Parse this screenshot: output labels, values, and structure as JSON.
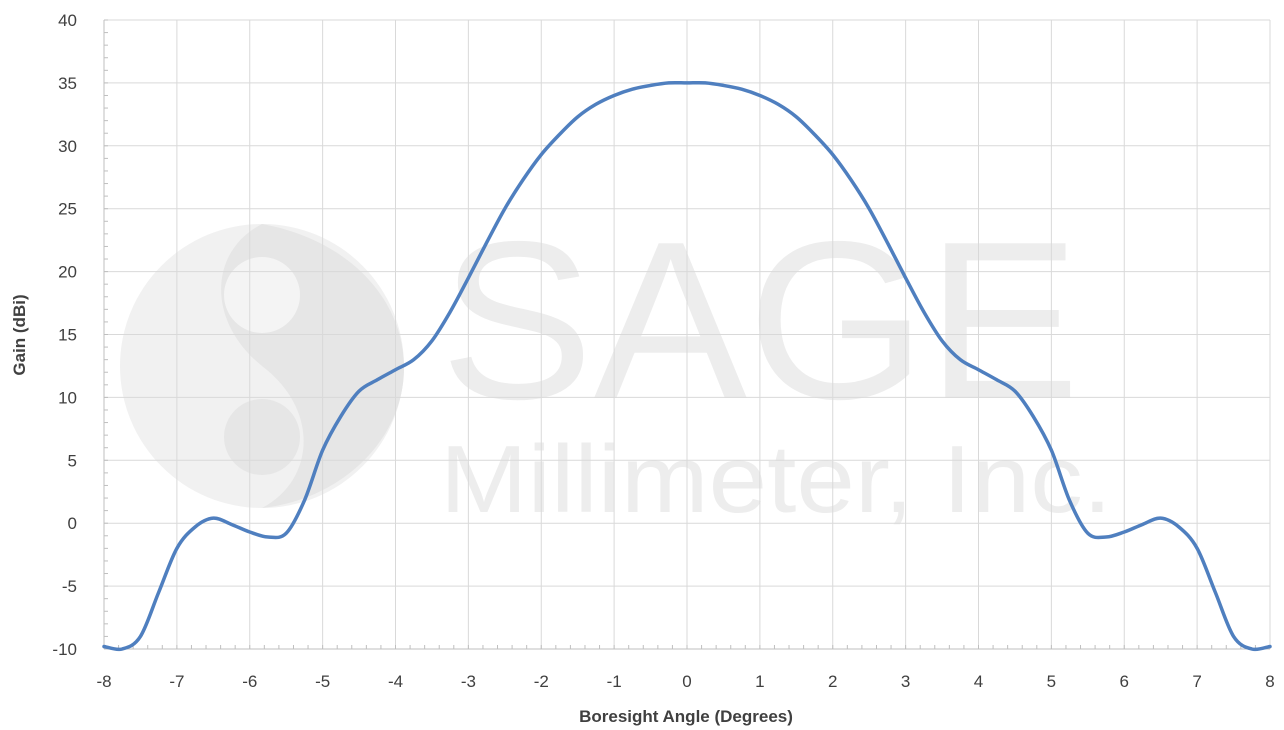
{
  "watermark": {
    "line1": "SAGE",
    "line2": "Millimeter, Inc."
  },
  "chart_data": {
    "type": "line",
    "title": "",
    "xlabel": "Boresight Angle (Degrees)",
    "ylabel": "Gain (dBi)",
    "xlim": [
      -8,
      8
    ],
    "ylim": [
      -10,
      40
    ],
    "xticks": [
      -8,
      -7,
      -6,
      -5,
      -4,
      -3,
      -2,
      -1,
      0,
      1,
      2,
      3,
      4,
      5,
      6,
      7,
      8
    ],
    "yticks": [
      -10,
      -5,
      0,
      5,
      10,
      15,
      20,
      25,
      30,
      35,
      40
    ],
    "grid": true,
    "legend": "none",
    "line_color": "#4f7fbf",
    "series": [
      {
        "x": [
          -8.0,
          -7.75,
          -7.5,
          -7.25,
          -7.0,
          -6.75,
          -6.5,
          -6.25,
          -6.0,
          -5.75,
          -5.5,
          -5.25,
          -5.0,
          -4.75,
          -4.5,
          -4.25,
          -4.0,
          -3.75,
          -3.5,
          -3.25,
          -3.0,
          -2.75,
          -2.5,
          -2.25,
          -2.0,
          -1.75,
          -1.5,
          -1.25,
          -1.0,
          -0.75,
          -0.5,
          -0.25,
          0.0,
          0.25,
          0.5,
          0.75,
          1.0,
          1.25,
          1.5,
          1.75,
          2.0,
          2.25,
          2.5,
          2.75,
          3.0,
          3.25,
          3.5,
          3.75,
          4.0,
          4.25,
          4.5,
          4.75,
          5.0,
          5.25,
          5.5,
          5.75,
          6.0,
          6.25,
          6.5,
          6.75,
          7.0,
          7.25,
          7.5,
          7.75,
          8.0
        ],
        "y": [
          -9.8,
          -10.0,
          -9.0,
          -5.5,
          -2.0,
          -0.3,
          0.4,
          -0.1,
          -0.7,
          -1.1,
          -0.8,
          1.8,
          5.8,
          8.5,
          10.5,
          11.4,
          12.2,
          13.0,
          14.5,
          16.8,
          19.5,
          22.3,
          25.0,
          27.3,
          29.3,
          30.9,
          32.3,
          33.3,
          34.0,
          34.5,
          34.8,
          35.0,
          35.0,
          35.0,
          34.8,
          34.5,
          34.0,
          33.3,
          32.3,
          30.9,
          29.3,
          27.3,
          25.0,
          22.3,
          19.5,
          16.8,
          14.5,
          13.0,
          12.2,
          11.4,
          10.5,
          8.5,
          5.8,
          1.8,
          -0.8,
          -1.1,
          -0.7,
          -0.1,
          0.4,
          -0.3,
          -2.0,
          -5.5,
          -9.0,
          -10.0,
          -9.8
        ]
      }
    ]
  }
}
